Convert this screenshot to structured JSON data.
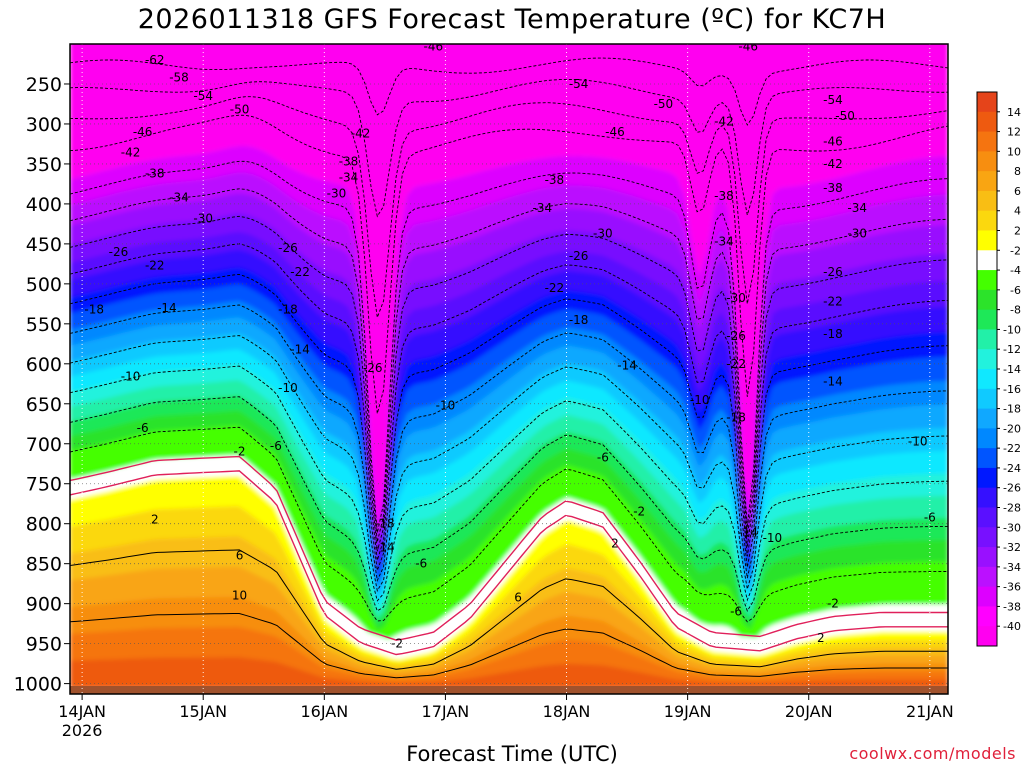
{
  "chart_data": {
    "type": "heatmap",
    "title": "2026011318 GFS Forecast Temperature (ºC) for KC7H",
    "xlabel": "Forecast Time (UTC)",
    "ylabel": "",
    "x_ticks": [
      {
        "day": 14,
        "label": "14JAN",
        "sublabel": "2026"
      },
      {
        "day": 15,
        "label": "15JAN"
      },
      {
        "day": 16,
        "label": "16JAN"
      },
      {
        "day": 17,
        "label": "17JAN"
      },
      {
        "day": 18,
        "label": "18JAN"
      },
      {
        "day": 19,
        "label": "19JAN"
      },
      {
        "day": 20,
        "label": "20JAN"
      },
      {
        "day": 21,
        "label": "21JAN"
      }
    ],
    "xlim": [
      13.9,
      21.15
    ],
    "y_ticks": [
      250,
      300,
      350,
      400,
      450,
      500,
      550,
      600,
      650,
      700,
      750,
      800,
      850,
      900,
      950,
      1000
    ],
    "ylim": [
      200,
      1013
    ],
    "y_units": "hPa",
    "colorbar": {
      "labels": [
        "14",
        "12",
        "10",
        "8",
        "6",
        "4",
        "2",
        "-2",
        "-4",
        "-6",
        "-8",
        "-10",
        "-12",
        "-14",
        "-16",
        "-18",
        "-20",
        "-22",
        "-24",
        "-26",
        "-28",
        "-30",
        "-32",
        "-34",
        "-36",
        "-38",
        "-40"
      ],
      "colors": [
        "#e5441a",
        "#ee5a10",
        "#f57410",
        "#f78e10",
        "#f9a512",
        "#f9be14",
        "#fbd80e",
        "#ffff00",
        "#ffffff",
        "#44ff00",
        "#2ce32a",
        "#1ee858",
        "#22f0a8",
        "#22f2dd",
        "#10e8ff",
        "#10caff",
        "#10a8ff",
        "#0088ff",
        "#0055ff",
        "#0018ff",
        "#3510ff",
        "#5a10ff",
        "#7810ff",
        "#9910ff",
        "#bb10ff",
        "#dd00ff",
        "#ff00ff",
        "#ff00f0"
      ]
    },
    "contour_labels": [
      {
        "v": "-62",
        "t": 14.6,
        "p": 220
      },
      {
        "v": "-58",
        "t": 14.8,
        "p": 242
      },
      {
        "v": "-54",
        "t": 15.0,
        "p": 265
      },
      {
        "v": "-50",
        "t": 15.3,
        "p": 282
      },
      {
        "v": "-46",
        "t": 14.5,
        "p": 310
      },
      {
        "v": "-42",
        "t": 14.4,
        "p": 336
      },
      {
        "v": "-38",
        "t": 14.6,
        "p": 362
      },
      {
        "v": "-34",
        "t": 14.8,
        "p": 392
      },
      {
        "v": "-30",
        "t": 15.0,
        "p": 418
      },
      {
        "v": "-26",
        "t": 14.3,
        "p": 460
      },
      {
        "v": "-22",
        "t": 14.6,
        "p": 477
      },
      {
        "v": "-18",
        "t": 14.1,
        "p": 532
      },
      {
        "v": "-14",
        "t": 14.7,
        "p": 530
      },
      {
        "v": "-10",
        "t": 14.4,
        "p": 616
      },
      {
        "v": "-6",
        "t": 14.5,
        "p": 680
      },
      {
        "v": "-2",
        "t": 15.3,
        "p": 710
      },
      {
        "v": "2",
        "t": 14.6,
        "p": 795
      },
      {
        "v": "6",
        "t": 15.3,
        "p": 840
      },
      {
        "v": "10",
        "t": 15.3,
        "p": 890
      },
      {
        "v": "-42",
        "t": 16.3,
        "p": 312
      },
      {
        "v": "-38",
        "t": 16.2,
        "p": 347
      },
      {
        "v": "-34",
        "t": 16.2,
        "p": 367
      },
      {
        "v": "-30",
        "t": 16.1,
        "p": 387
      },
      {
        "v": "-26",
        "t": 15.7,
        "p": 455
      },
      {
        "v": "-22",
        "t": 15.8,
        "p": 485
      },
      {
        "v": "-18",
        "t": 15.7,
        "p": 532
      },
      {
        "v": "-14",
        "t": 15.8,
        "p": 582
      },
      {
        "v": "-10",
        "t": 15.7,
        "p": 630
      },
      {
        "v": "-6",
        "t": 15.6,
        "p": 703
      },
      {
        "v": "-26",
        "t": 16.4,
        "p": 605
      },
      {
        "v": "-18",
        "t": 16.5,
        "p": 800
      },
      {
        "v": "-14",
        "t": 16.5,
        "p": 830
      },
      {
        "v": "-6",
        "t": 16.8,
        "p": 850
      },
      {
        "v": "-2",
        "t": 16.6,
        "p": 950
      },
      {
        "v": "-46",
        "t": 16.9,
        "p": 203
      },
      {
        "v": "-54",
        "t": 18.1,
        "p": 250
      },
      {
        "v": "-50",
        "t": 18.8,
        "p": 275
      },
      {
        "v": "-46",
        "t": 18.4,
        "p": 310
      },
      {
        "v": "-42",
        "t": 19.3,
        "p": 297
      },
      {
        "v": "-38",
        "t": 17.9,
        "p": 370
      },
      {
        "v": "-34",
        "t": 17.8,
        "p": 405
      },
      {
        "v": "-30",
        "t": 18.3,
        "p": 437
      },
      {
        "v": "-26",
        "t": 18.1,
        "p": 465
      },
      {
        "v": "-22",
        "t": 17.9,
        "p": 505
      },
      {
        "v": "-18",
        "t": 18.1,
        "p": 545
      },
      {
        "v": "-14",
        "t": 18.5,
        "p": 602
      },
      {
        "v": "-10",
        "t": 17.0,
        "p": 652
      },
      {
        "v": "-6",
        "t": 18.3,
        "p": 717
      },
      {
        "v": "-2",
        "t": 18.6,
        "p": 785
      },
      {
        "v": "2",
        "t": 18.4,
        "p": 825
      },
      {
        "v": "6",
        "t": 17.6,
        "p": 892
      },
      {
        "v": "-46",
        "t": 19.5,
        "p": 203
      },
      {
        "v": "-38",
        "t": 19.3,
        "p": 390
      },
      {
        "v": "-34",
        "t": 19.3,
        "p": 447
      },
      {
        "v": "-30",
        "t": 19.4,
        "p": 518
      },
      {
        "v": "-26",
        "t": 19.4,
        "p": 565
      },
      {
        "v": "-22",
        "t": 19.4,
        "p": 600
      },
      {
        "v": "-18",
        "t": 19.4,
        "p": 667
      },
      {
        "v": "-14",
        "t": 19.5,
        "p": 811
      },
      {
        "v": "-10",
        "t": 19.7,
        "p": 818
      },
      {
        "v": "-10",
        "t": 19.1,
        "p": 645
      },
      {
        "v": "-6",
        "t": 19.4,
        "p": 910
      },
      {
        "v": "-54",
        "t": 20.2,
        "p": 270
      },
      {
        "v": "-50",
        "t": 20.3,
        "p": 290
      },
      {
        "v": "-46",
        "t": 20.2,
        "p": 322
      },
      {
        "v": "-42",
        "t": 20.2,
        "p": 350
      },
      {
        "v": "-38",
        "t": 20.2,
        "p": 380
      },
      {
        "v": "-34",
        "t": 20.4,
        "p": 405
      },
      {
        "v": "-30",
        "t": 20.4,
        "p": 437
      },
      {
        "v": "-26",
        "t": 20.2,
        "p": 485
      },
      {
        "v": "-22",
        "t": 20.2,
        "p": 522
      },
      {
        "v": "-18",
        "t": 20.2,
        "p": 563
      },
      {
        "v": "-14",
        "t": 20.2,
        "p": 622
      },
      {
        "v": "-10",
        "t": 20.9,
        "p": 697
      },
      {
        "v": "-6",
        "t": 21.0,
        "p": 792
      },
      {
        "v": "-2",
        "t": 20.2,
        "p": 900
      },
      {
        "v": "2",
        "t": 20.1,
        "p": 943
      }
    ]
  },
  "footer": {
    "credit": "coolwx.com/models"
  }
}
